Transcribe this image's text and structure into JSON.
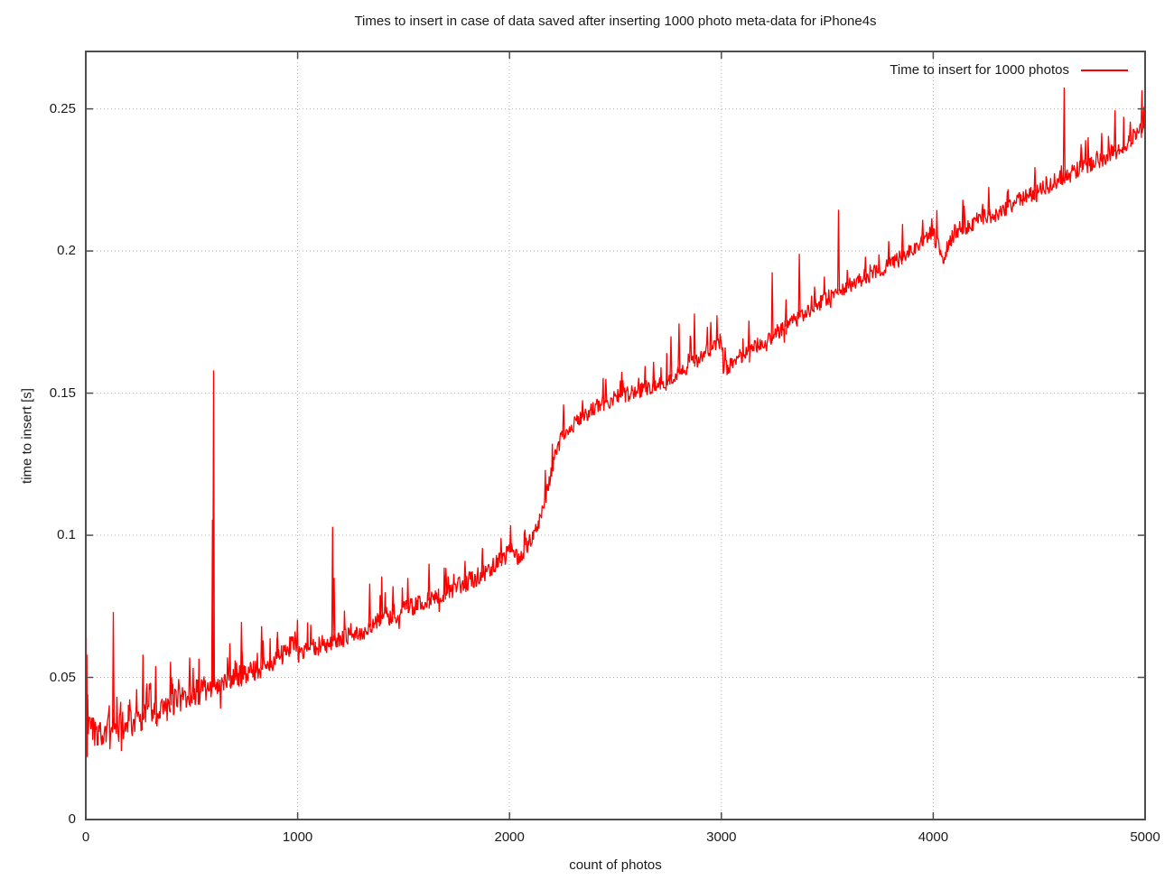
{
  "title": "Times to insert in case of data saved after inserting 1000 photo meta-data for iPhone4s",
  "axes": {
    "xlabel": "count of photos",
    "ylabel": "time to insert [s]"
  },
  "legend": {
    "label": "Time to insert for 1000 photos"
  },
  "colors": {
    "line": "#ff0000",
    "grid": "#b3b3b3",
    "border": "#4d4d4d",
    "text": "#1a1a1a",
    "background": "#ffffff"
  },
  "chart_data": {
    "type": "line",
    "title": "Times to insert in case of data saved after inserting 1000 photo meta-data for iPhone4s",
    "xlabel": "count of photos",
    "ylabel": "time to insert [s]",
    "xlim": [
      0,
      5000
    ],
    "ylim": [
      0,
      0.2702
    ],
    "grid": true,
    "grid_style": "dotted",
    "legend_position": "top-right",
    "xticks": [
      [
        0,
        "0"
      ],
      [
        1000,
        "1000"
      ],
      [
        2000,
        "2000"
      ],
      [
        3000,
        "3000"
      ],
      [
        4000,
        "4000"
      ],
      [
        5000,
        "5000"
      ]
    ],
    "yticks": [
      [
        0,
        "0"
      ],
      [
        0.05,
        "0.05"
      ],
      [
        0.1,
        "0.1"
      ],
      [
        0.15,
        "0.15"
      ],
      [
        0.2,
        "0.2"
      ],
      [
        0.25,
        "0.25"
      ]
    ],
    "series": [
      {
        "name": "Time to insert for 1000 photos",
        "color": "#ff0000",
        "trend": [
          [
            0,
            0.033
          ],
          [
            60,
            0.03
          ],
          [
            150,
            0.032
          ],
          [
            250,
            0.035
          ],
          [
            350,
            0.038
          ],
          [
            450,
            0.042
          ],
          [
            550,
            0.045
          ],
          [
            650,
            0.048
          ],
          [
            750,
            0.051
          ],
          [
            850,
            0.054
          ],
          [
            930,
            0.058
          ],
          [
            990,
            0.063
          ],
          [
            1005,
            0.0585
          ],
          [
            1100,
            0.061
          ],
          [
            1200,
            0.0635
          ],
          [
            1300,
            0.066
          ],
          [
            1400,
            0.0705
          ],
          [
            1500,
            0.0735
          ],
          [
            1600,
            0.0765
          ],
          [
            1700,
            0.08
          ],
          [
            1800,
            0.0835
          ],
          [
            1900,
            0.0875
          ],
          [
            1980,
            0.0925
          ],
          [
            2010,
            0.0945
          ],
          [
            2045,
            0.0925
          ],
          [
            2080,
            0.096
          ],
          [
            2110,
            0.099
          ],
          [
            2140,
            0.1045
          ],
          [
            2170,
            0.113
          ],
          [
            2200,
            0.1235
          ],
          [
            2230,
            0.132
          ],
          [
            2260,
            0.1365
          ],
          [
            2320,
            0.14
          ],
          [
            2400,
            0.1445
          ],
          [
            2500,
            0.1485
          ],
          [
            2600,
            0.1505
          ],
          [
            2700,
            0.1525
          ],
          [
            2800,
            0.1575
          ],
          [
            2900,
            0.1625
          ],
          [
            2995,
            0.1685
          ],
          [
            3010,
            0.158
          ],
          [
            3100,
            0.1635
          ],
          [
            3200,
            0.168
          ],
          [
            3300,
            0.1735
          ],
          [
            3400,
            0.178
          ],
          [
            3500,
            0.1835
          ],
          [
            3600,
            0.188
          ],
          [
            3700,
            0.1915
          ],
          [
            3800,
            0.1955
          ],
          [
            3900,
            0.2005
          ],
          [
            3995,
            0.2065
          ],
          [
            4045,
            0.1975
          ],
          [
            4100,
            0.2065
          ],
          [
            4200,
            0.2105
          ],
          [
            4300,
            0.2135
          ],
          [
            4400,
            0.2175
          ],
          [
            4500,
            0.2215
          ],
          [
            4600,
            0.2255
          ],
          [
            4700,
            0.2295
          ],
          [
            4800,
            0.2325
          ],
          [
            4900,
            0.2375
          ],
          [
            5000,
            0.2435
          ]
        ],
        "spikes": [
          [
            130,
            0.073
          ],
          [
            270,
            0.058
          ],
          [
            330,
            0.054
          ],
          [
            400,
            0.0555
          ],
          [
            490,
            0.057
          ],
          [
            598,
            0.1055
          ],
          [
            603,
            0.158
          ],
          [
            680,
            0.062
          ],
          [
            735,
            0.0695
          ],
          [
            830,
            0.068
          ],
          [
            905,
            0.066
          ],
          [
            1165,
            0.103
          ],
          [
            1172,
            0.085
          ],
          [
            1340,
            0.083
          ],
          [
            1397,
            0.0855
          ],
          [
            1450,
            0.082
          ],
          [
            1520,
            0.085
          ],
          [
            1620,
            0.09
          ],
          [
            1700,
            0.0885
          ],
          [
            1790,
            0.091
          ],
          [
            1872,
            0.0955
          ],
          [
            1960,
            0.099
          ],
          [
            2005,
            0.1035
          ],
          [
            2255,
            0.146
          ],
          [
            2345,
            0.1475
          ],
          [
            2455,
            0.155
          ],
          [
            2530,
            0.1575
          ],
          [
            2680,
            0.161
          ],
          [
            2762,
            0.17
          ],
          [
            2800,
            0.1745
          ],
          [
            2873,
            0.178
          ],
          [
            2950,
            0.175
          ],
          [
            3130,
            0.1755
          ],
          [
            3240,
            0.1925
          ],
          [
            3305,
            0.183
          ],
          [
            3368,
            0.199
          ],
          [
            3440,
            0.1875
          ],
          [
            3553,
            0.2145
          ],
          [
            3680,
            0.198
          ],
          [
            3790,
            0.2035
          ],
          [
            3855,
            0.2095
          ],
          [
            3950,
            0.211
          ],
          [
            3993,
            0.2115
          ],
          [
            4140,
            0.218
          ],
          [
            4262,
            0.2225
          ],
          [
            4350,
            0.221
          ],
          [
            4480,
            0.2295
          ],
          [
            4618,
            0.2575
          ],
          [
            4700,
            0.2365
          ],
          [
            4795,
            0.2415
          ],
          [
            4858,
            0.2495
          ],
          [
            4930,
            0.2455
          ],
          [
            4985,
            0.2565
          ],
          [
            4997,
            0.2505
          ]
        ],
        "start_burst": [
          [
            0,
            0.034
          ],
          [
            1,
            0.021
          ],
          [
            2,
            0.064
          ],
          [
            3,
            0.025
          ],
          [
            5,
            0.058
          ],
          [
            7,
            0.022
          ],
          [
            9,
            0.044
          ],
          [
            12,
            0.03
          ]
        ],
        "noise": {
          "seed": 42,
          "start": 15,
          "step": 3,
          "regions": [
            {
              "upto": 650,
              "amp": 0.0052,
              "burst_p": 0.1,
              "burst_amp": 0.011,
              "cluster_amp": 0.009
            },
            {
              "upto": 1000,
              "amp": 0.0038,
              "burst_p": 0.08,
              "burst_amp": 0.008,
              "cluster_amp": 0.007
            },
            {
              "upto": 2100,
              "amp": 0.0033,
              "burst_p": 0.07,
              "burst_amp": 0.008,
              "cluster_amp": 0
            },
            {
              "upto": 3000,
              "amp": 0.0028,
              "burst_p": 0.06,
              "burst_amp": 0.009,
              "cluster_amp": 0
            },
            {
              "upto": 4000,
              "amp": 0.0028,
              "burst_p": 0.06,
              "burst_amp": 0.01,
              "cluster_amp": 0
            },
            {
              "upto": 5000,
              "amp": 0.003,
              "burst_p": 0.07,
              "burst_amp": 0.011,
              "cluster_amp": 0
            }
          ]
        }
      }
    ]
  }
}
